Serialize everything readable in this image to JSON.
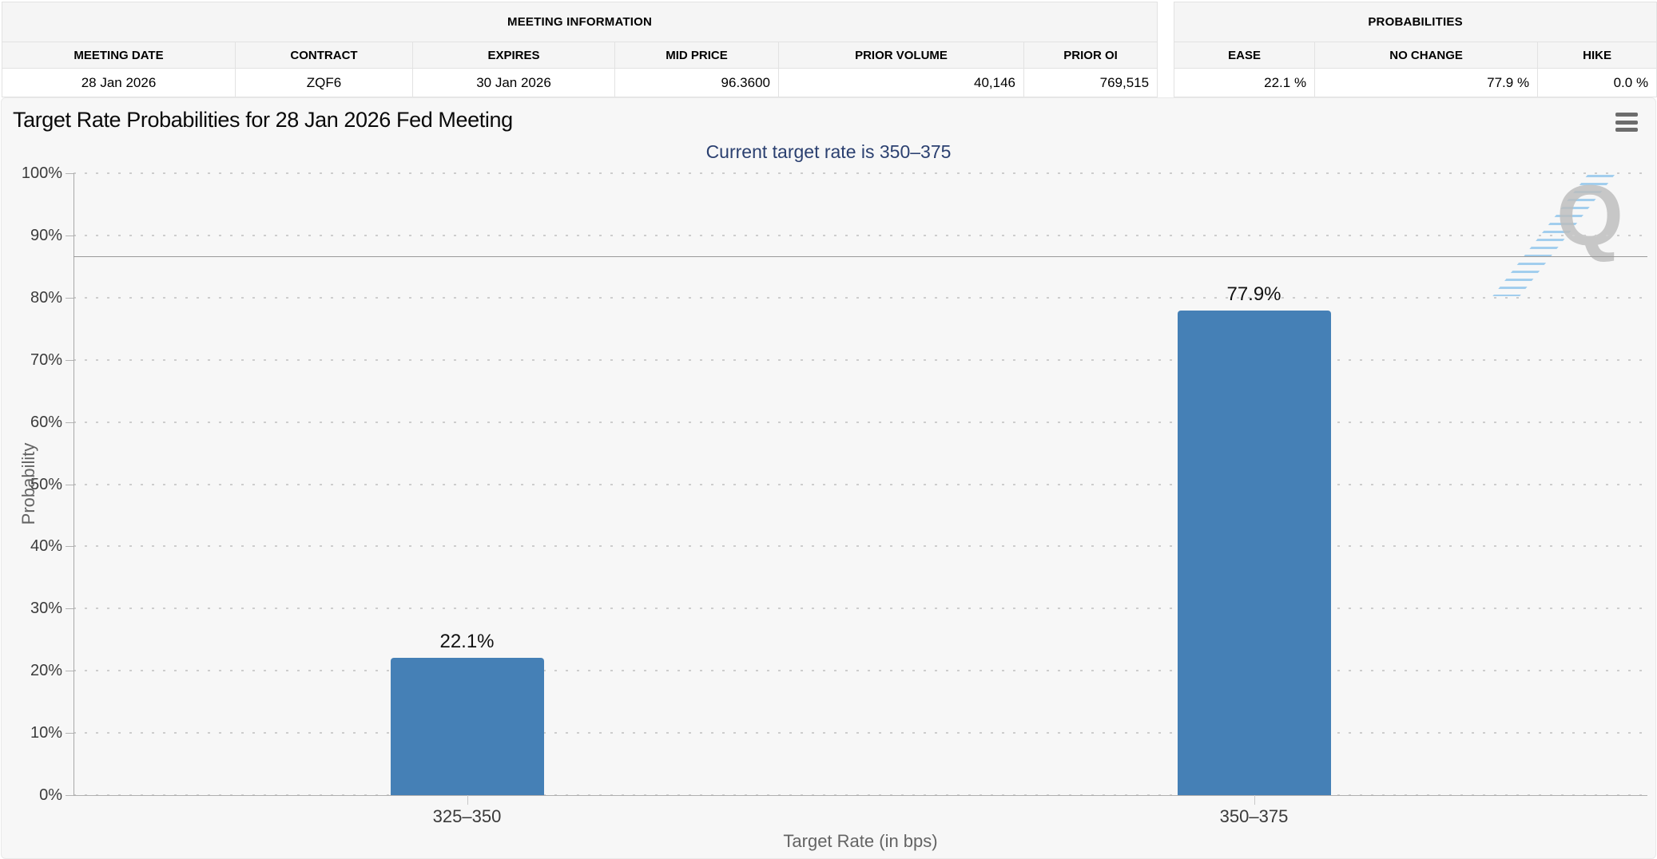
{
  "meeting_information": {
    "title": "MEETING INFORMATION",
    "columns": [
      "MEETING DATE",
      "CONTRACT",
      "EXPIRES",
      "MID PRICE",
      "PRIOR VOLUME",
      "PRIOR OI"
    ],
    "values": [
      "28 Jan 2026",
      "ZQF6",
      "30 Jan 2026",
      "96.3600",
      "40,146",
      "769,515"
    ]
  },
  "probabilities": {
    "title": "PROBABILITIES",
    "columns": [
      "EASE",
      "NO CHANGE",
      "HIKE"
    ],
    "values": [
      "22.1 %",
      "77.9 %",
      "0.0 %"
    ]
  },
  "chart": {
    "title": "Target Rate Probabilities for 28 Jan 2026 Fed Meeting",
    "subtitle": "Current target rate is 350–375",
    "subtitle_color": "#2b4070",
    "watermark_letter": "Q",
    "menu_icon": "hamburger-icon"
  },
  "chart_data": {
    "type": "bar",
    "title": "Target Rate Probabilities for 28 Jan 2026 Fed Meeting",
    "subtitle": "Current target rate is 350–375",
    "categories": [
      "325–350",
      "350–375"
    ],
    "values": [
      22.1,
      77.9
    ],
    "data_labels": [
      "22.1%",
      "77.9%"
    ],
    "xlabel": "Target Rate (in bps)",
    "ylabel": "Probability",
    "ylim": [
      0,
      100
    ],
    "ytick_step": 10,
    "ytick_suffix": "%",
    "grid": "dotted horizontal",
    "legend": "none",
    "reference_line_y": 86.7,
    "bar_color": "#4580b6"
  }
}
